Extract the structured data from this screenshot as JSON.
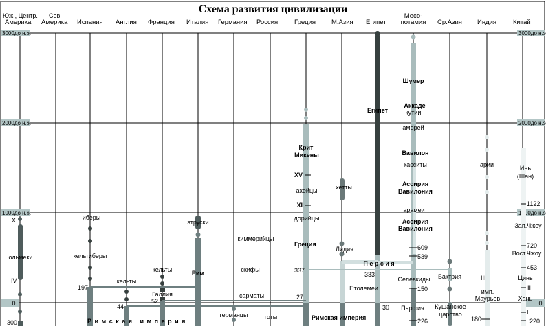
{
  "title": "Схема развития цивилизации",
  "columns": [
    "Юж., Центр.",
    "Америка",
    "Сев.",
    "Америка",
    "Испания",
    "Англия",
    "Франция",
    "Италия",
    "Германия",
    "Россия",
    "Греция",
    "М.Азия",
    "Египет",
    "Месо-",
    "потамия",
    "Ср.Азия",
    "Индия",
    "Китай"
  ],
  "time_labels": {
    "y3000": "3000до н.э.",
    "y2000": "2000до н.э.",
    "y1000": "1000до н.э.",
    "y0": "0",
    "y300": "300"
  },
  "labels": {
    "shumer": "Шумер",
    "akkade": "Аккаде",
    "kutii": "кутии",
    "egipet": "Египет",
    "amorei": "аморей",
    "krit": "Крит",
    "mikeny": "Микены",
    "vavilon": "Вавилон",
    "kassity": "касситы",
    "arii": "арии",
    "in": "Инь",
    "shan": "(Шан)",
    "xv": "XV",
    "aheitsy": "ахейцы",
    "hetty": "хетты",
    "assiria1": "Ассирия",
    "vavilonia1": "Вавилония",
    "xi": "XI",
    "aramei": "арамеи",
    "y1122": "1122",
    "doriitsy": "дорийцы",
    "assiria2": "Ассирия",
    "vavilonia2": "Вавилония",
    "zapchzhou": "Зап.Чжоу",
    "kimmeriitsy": "киммерийцы",
    "gretsia": "Греция",
    "lidia": "Лидия",
    "y609": "609",
    "y720": "720",
    "y539": "539",
    "vostchzhou": "Вост.Чжоу",
    "persia": "П е р с и я",
    "y453": "453",
    "skify": "скифы",
    "y337": "337",
    "y333": "333",
    "selevkidy": "Селевкиды",
    "baktria": "Бактрия",
    "iii": "III",
    "tsin": "Цинь",
    "ptolemei": "Птолемеи",
    "y150": "150",
    "ii": "II",
    "imp": "имп.",
    "mauriev": "Маурьев",
    "han": "Хань",
    "sarmaty": "сарматы",
    "y27": "27",
    "y30": "30",
    "parfia": "Парфия",
    "kushan1": "Кушанское",
    "kushan2": "царство",
    "i": "I",
    "goty": "готы",
    "rim_imp_greece": "Римская империя",
    "y226": "226",
    "y180": "180",
    "y220": "220",
    "x": "X",
    "olmeki": "ольмеки",
    "iv": "IV",
    "ibery": "иберы",
    "keltibery": "кельтиберы",
    "y197": "197",
    "kelty_en": "кельты",
    "y44": "44",
    "kelty_fr": "кельты",
    "gallia": "Галлия",
    "y52": "52",
    "etruski": "этруски",
    "rim": "Рим",
    "germantsy": "германцы",
    "rim_imp": "Р и м с к а я   и м п е р и я"
  },
  "colors": {
    "dark": "#37403f",
    "mid": "#6e7f80",
    "light": "#a9bcbc",
    "pale": "#e4ecec",
    "label_bg": "#b3c6c6"
  }
}
